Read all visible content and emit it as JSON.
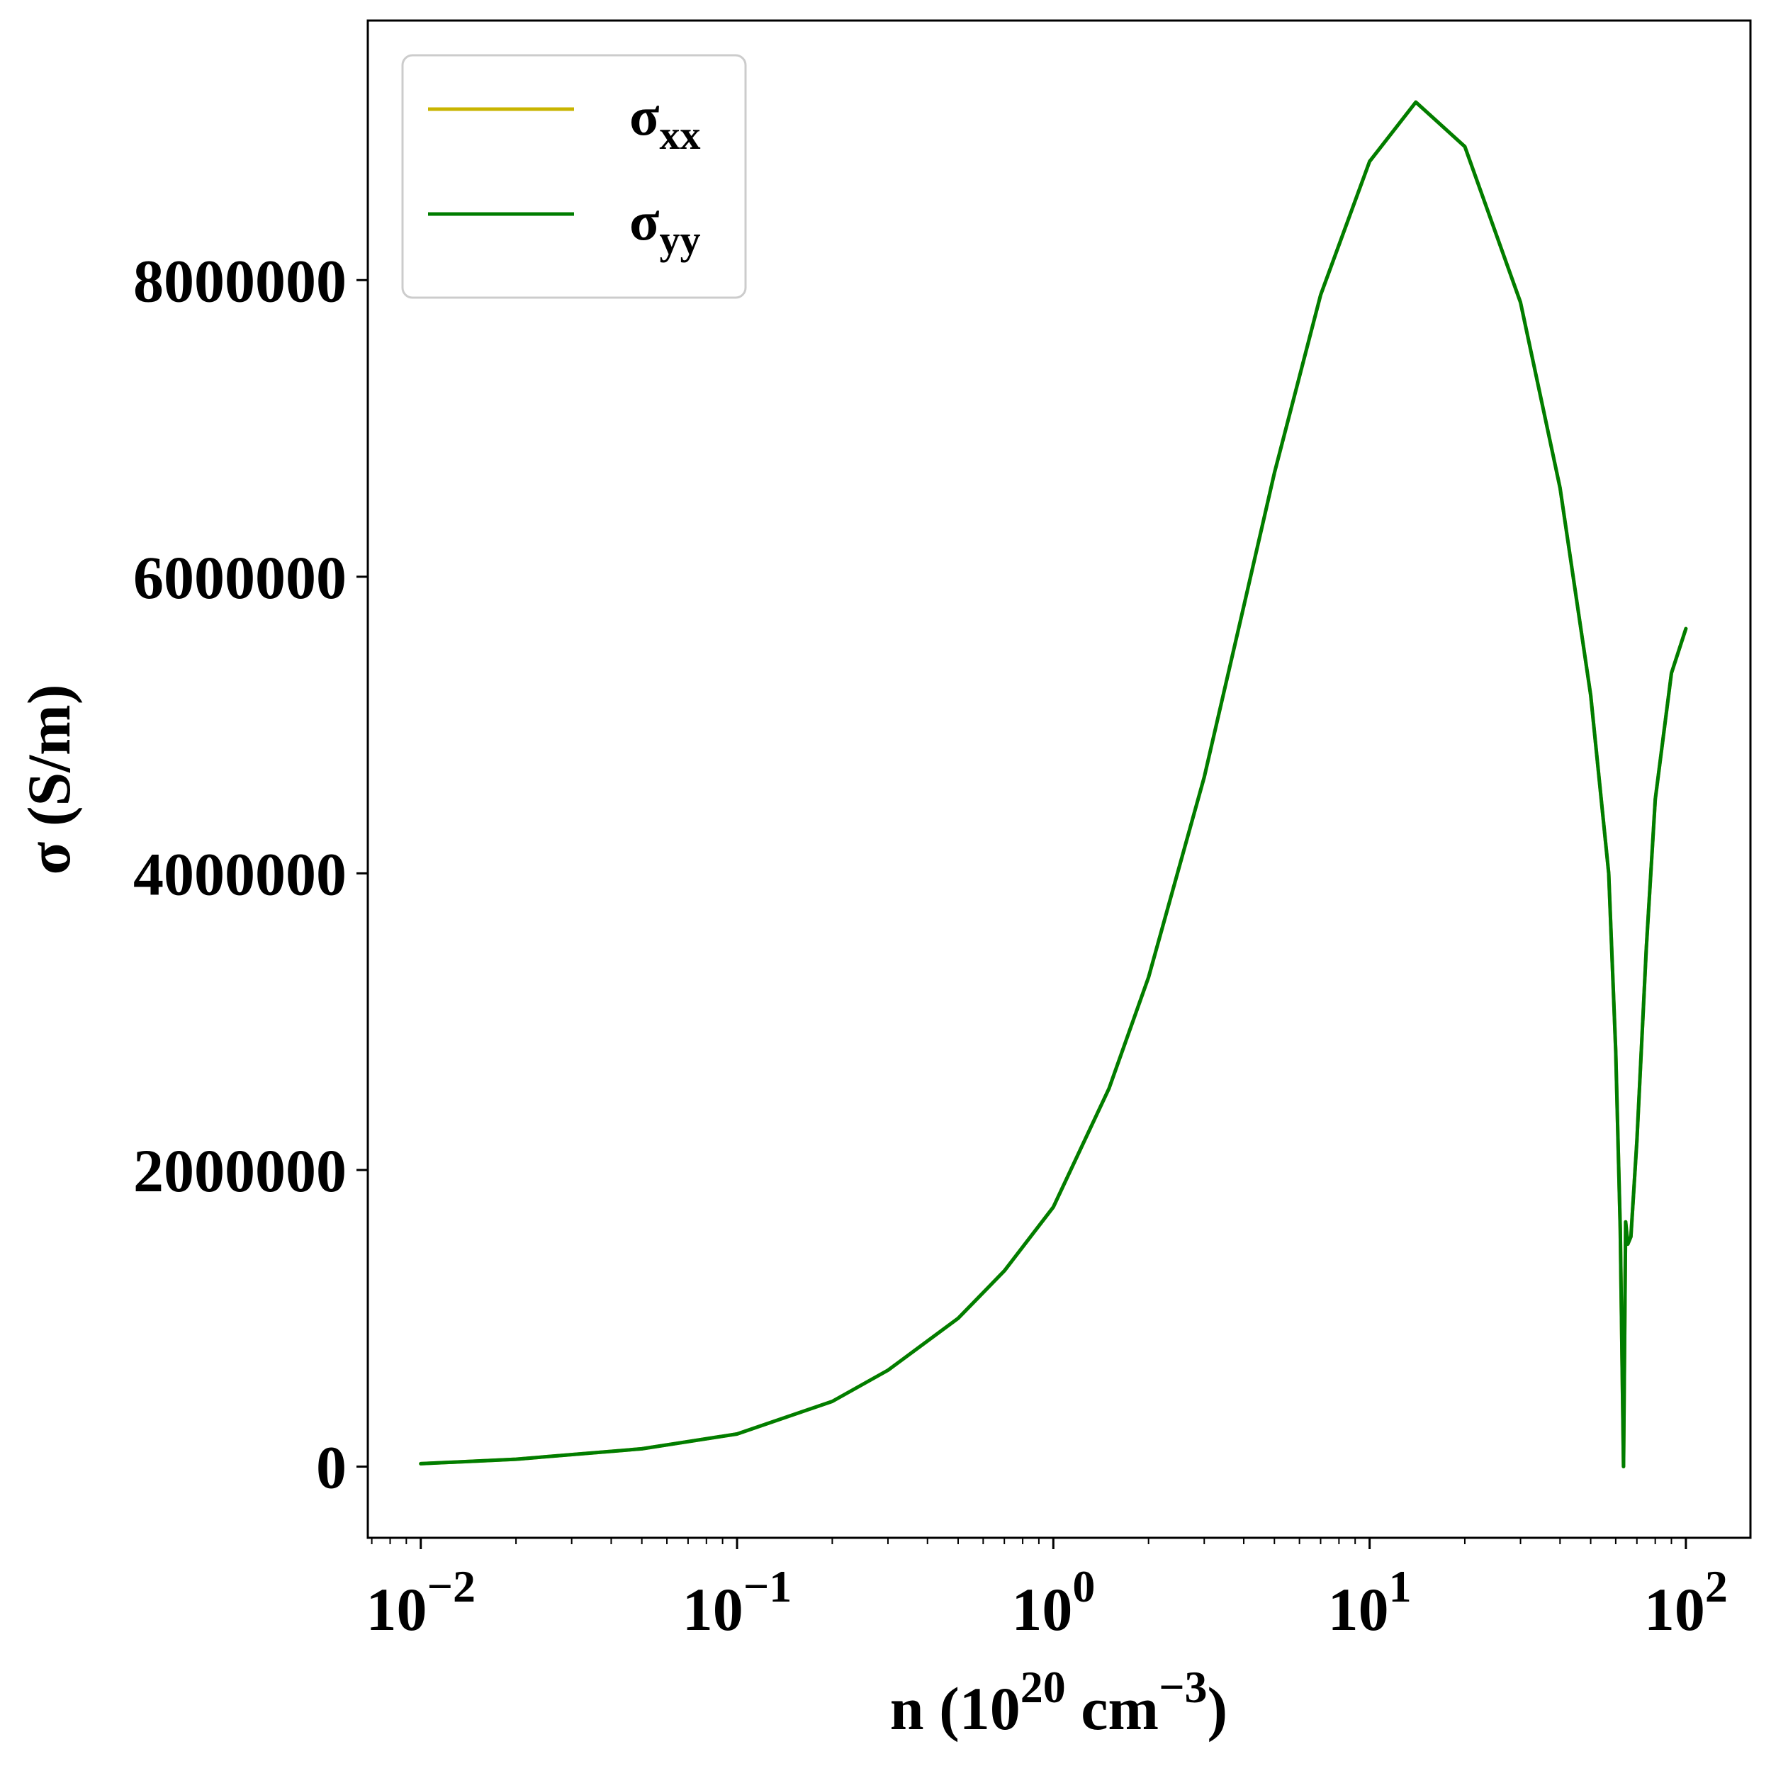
{
  "chart_data": {
    "type": "line",
    "x_scale": "log",
    "xlim": [
      0.0068,
      160
    ],
    "ylim": [
      -480000,
      9750000
    ],
    "x_ticks": [
      {
        "value": 0.01,
        "base": "10",
        "exp": "−2"
      },
      {
        "value": 0.1,
        "base": "10",
        "exp": "−1"
      },
      {
        "value": 1,
        "base": "10",
        "exp": "0"
      },
      {
        "value": 10,
        "base": "10",
        "exp": "1"
      },
      {
        "value": 100,
        "base": "10",
        "exp": "2"
      }
    ],
    "y_ticks": [
      {
        "value": 0,
        "label": "0"
      },
      {
        "value": 2000000,
        "label": "2000000"
      },
      {
        "value": 4000000,
        "label": "4000000"
      },
      {
        "value": 6000000,
        "label": "6000000"
      },
      {
        "value": 8000000,
        "label": "8000000"
      }
    ],
    "xlabel": {
      "main": "n (10",
      "exp1": "20",
      "mid": " cm",
      "exp2": "−3",
      "end": ")"
    },
    "ylabel": "σ (S/m)",
    "legend_position": "top-left",
    "series": [
      {
        "name": "σxx",
        "name_main": "σ",
        "name_sub": "xx",
        "color": "#c8b400",
        "x": [
          0.01,
          0.02,
          0.05,
          0.1,
          0.2,
          0.3,
          0.5,
          0.7,
          1,
          1.5,
          2,
          3,
          4,
          5,
          7,
          10,
          14,
          20,
          30,
          40,
          50,
          57,
          60,
          62,
          63.5,
          64.5,
          65.5,
          67,
          70,
          75,
          80,
          90,
          100
        ],
        "y": [
          20000,
          50000,
          120000,
          220000,
          440000,
          650000,
          1000000,
          1320000,
          1750000,
          2550000,
          3300000,
          4650000,
          5800000,
          6700000,
          7900000,
          8800000,
          9200000,
          8900000,
          7850000,
          6600000,
          5200000,
          4000000,
          2800000,
          1600000,
          0,
          1650000,
          1500000,
          1550000,
          2200000,
          3500000,
          4500000,
          5350000,
          5650000
        ]
      },
      {
        "name": "σyy",
        "name_main": "σ",
        "name_sub": "yy",
        "color": "#007d00",
        "x": [
          0.01,
          0.02,
          0.05,
          0.1,
          0.2,
          0.3,
          0.5,
          0.7,
          1,
          1.5,
          2,
          3,
          4,
          5,
          7,
          10,
          14,
          20,
          30,
          40,
          50,
          57,
          60,
          62,
          63.5,
          64.5,
          65.5,
          67,
          70,
          75,
          80,
          90,
          100
        ],
        "y": [
          20000,
          50000,
          120000,
          220000,
          440000,
          650000,
          1000000,
          1320000,
          1750000,
          2550000,
          3300000,
          4650000,
          5800000,
          6700000,
          7900000,
          8800000,
          9200000,
          8900000,
          7850000,
          6600000,
          5200000,
          4000000,
          2800000,
          1600000,
          0,
          1650000,
          1500000,
          1550000,
          2200000,
          3500000,
          4500000,
          5350000,
          5650000
        ]
      }
    ]
  }
}
